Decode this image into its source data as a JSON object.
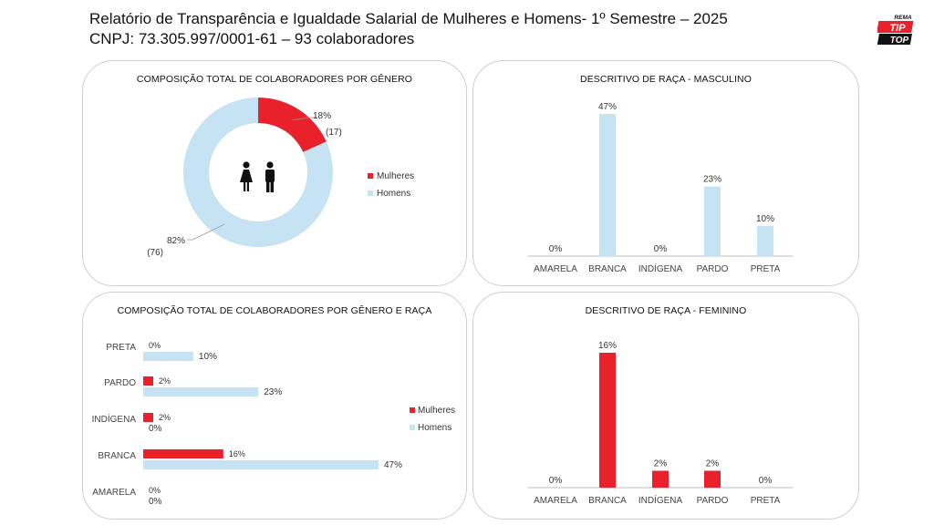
{
  "header": {
    "line1": "Relatório de Transparência e Igualdade Salarial de Mulheres e Homens- 1º Semestre – 2025",
    "line2": "CNPJ: 73.305.997/0001-61 – 93 colaboradores"
  },
  "logo": {
    "top": "REMA",
    "mid": "TIP",
    "bottom": "TOP"
  },
  "colors": {
    "mulheres": "#e8212b",
    "homens": "#c5e3f3"
  },
  "chart_data": [
    {
      "type": "pie",
      "title": "COMPOSIÇÃO TOTAL DE COLABORADORES POR GÊNERO",
      "slices": [
        {
          "name": "Mulheres",
          "percent_label": "18%",
          "count_label": "(17)",
          "value": 17
        },
        {
          "name": "Homens",
          "percent_label": "82%",
          "count_label": "(76)",
          "value": 76
        }
      ],
      "legend_position": "right",
      "center_icon": "woman-man-icon"
    },
    {
      "type": "bar",
      "title": "DESCRITIVO DE RAÇA - MASCULINO",
      "categories": [
        "AMARELA",
        "BRANCA",
        "INDÍGENA",
        "PARDO",
        "PRETA"
      ],
      "values": [
        0,
        47,
        0,
        23,
        10
      ],
      "labels": [
        "0%",
        "47%",
        "0%",
        "23%",
        "10%"
      ],
      "ylim": [
        0,
        47
      ]
    },
    {
      "type": "bar",
      "orientation": "horizontal",
      "title": "COMPOSIÇÃO TOTAL DE COLABORADORES POR GÊNERO E RAÇA",
      "categories": [
        "PRETA",
        "PARDO",
        "INDÍGENA",
        "BRANCA",
        "AMARELA"
      ],
      "series": [
        {
          "name": "Mulheres",
          "values": [
            0,
            2,
            2,
            16,
            0
          ],
          "labels": [
            "0%",
            "2%",
            "2%",
            "16%",
            "0%"
          ]
        },
        {
          "name": "Homens",
          "values": [
            10,
            23,
            0,
            47,
            0
          ],
          "labels": [
            "10%",
            "23%",
            "0%",
            "47%",
            "0%"
          ]
        }
      ],
      "xlim": [
        0,
        47
      ],
      "legend_position": "right"
    },
    {
      "type": "bar",
      "title": "DESCRITIVO DE RAÇA - FEMININO",
      "categories": [
        "AMARELA",
        "BRANCA",
        "INDÍGENA",
        "PARDO",
        "PRETA"
      ],
      "values": [
        0,
        16,
        2,
        2,
        0
      ],
      "labels": [
        "0%",
        "16%",
        "2%",
        "2%",
        "0%"
      ],
      "ylim": [
        0,
        16
      ]
    }
  ]
}
